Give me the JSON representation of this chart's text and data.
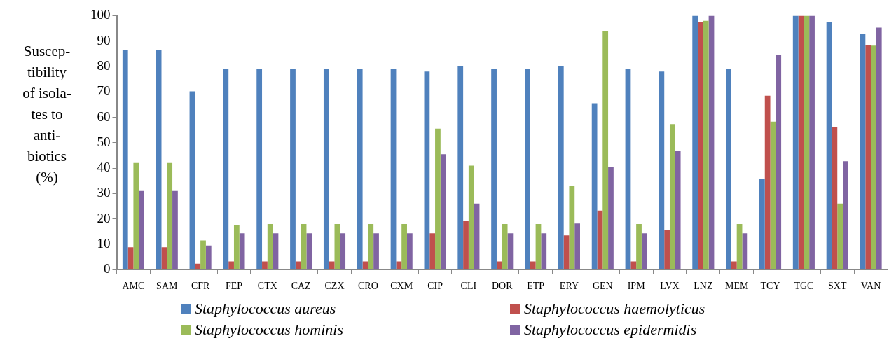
{
  "chart_data": {
    "type": "bar",
    "ylabel": "Suscep-\ntibility\nof isola-\ntes to\nanti-\nbiotics\n(%)",
    "categories": [
      "AMC",
      "SAM",
      "CFR",
      "FEP",
      "CTX",
      "CAZ",
      "CZX",
      "CRO",
      "CXM",
      "CIP",
      "CLI",
      "DOR",
      "ETP",
      "ERY",
      "GEN",
      "IPM",
      "LVX",
      "LNZ",
      "MEM",
      "TCY",
      "TGC",
      "SXT",
      "VAN"
    ],
    "series": [
      {
        "name": "Staphylococcus aureus",
        "color": "#4f81bd",
        "values": [
          86.5,
          86.5,
          70.2,
          79,
          79,
          79,
          79,
          79,
          79,
          78,
          80,
          79,
          79,
          80,
          65.5,
          79,
          78,
          100,
          79,
          35.8,
          100,
          97.5,
          92.7
        ]
      },
      {
        "name": "Staphylococcus haemolyticus",
        "color": "#c0504d",
        "values": [
          8.8,
          8.8,
          2.3,
          3.2,
          3.2,
          3.2,
          3.2,
          3.2,
          3.2,
          14.3,
          19.3,
          3.2,
          3.2,
          13.5,
          23.3,
          3.2,
          15.6,
          97.5,
          3.2,
          68.5,
          100,
          56.2,
          88.5
        ]
      },
      {
        "name": "Staphylococcus hominis",
        "color": "#9bbb59",
        "values": [
          42,
          42,
          11.5,
          17.5,
          18,
          18,
          18,
          18,
          18,
          55.5,
          41,
          18,
          18,
          33,
          93.8,
          18,
          57.3,
          98,
          18,
          58.3,
          100,
          26,
          88.2
        ]
      },
      {
        "name": "Staphylococcus epidermidis",
        "color": "#8064a2",
        "values": [
          31,
          31,
          9.5,
          14.3,
          14.3,
          14.3,
          14.3,
          14.3,
          14.3,
          45.5,
          26,
          14.3,
          14.3,
          18.2,
          40.5,
          14.3,
          46.8,
          100,
          14.3,
          84.5,
          100,
          42.7,
          95.3
        ]
      }
    ],
    "ylim": [
      0,
      100
    ],
    "yticks": [
      0,
      10,
      20,
      30,
      40,
      50,
      60,
      70,
      80,
      90,
      100
    ],
    "grid": false,
    "legend": "bottom"
  }
}
